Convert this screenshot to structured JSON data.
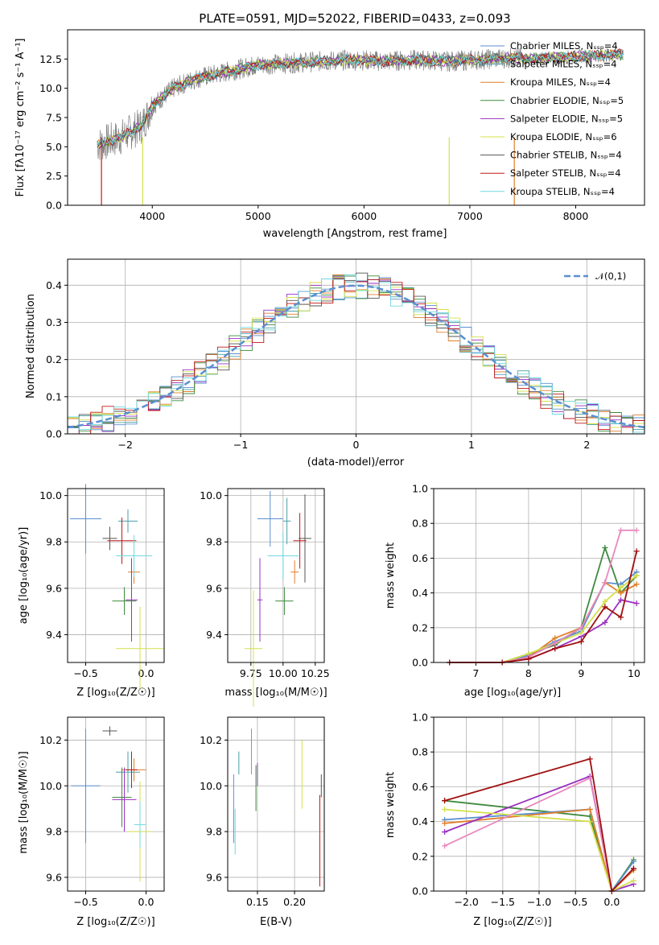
{
  "spectrum": {
    "title": "PLATE=0591, MJD=52022, FIBERID=0433, z=0.093",
    "xlabel": "wavelength [Angstrom, rest frame]",
    "ylabel": "Flux [fλ10⁻¹⁷ erg cm⁻² s⁻¹ A⁻¹]",
    "xticks": [
      "4000",
      "5000",
      "6000",
      "7000",
      "8000"
    ],
    "yticks": [
      "0.0",
      "2.5",
      "5.0",
      "7.5",
      "10.0",
      "12.5"
    ],
    "legend": [
      {
        "label": "Chabrier MILES, N_SSP=4",
        "color": "#5b8fd0"
      },
      {
        "label": "Salpeter MILES, N_SSP=4",
        "color": "#4aa0a8"
      },
      {
        "label": "Kroupa MILES, N_SSP=4",
        "color": "#e07f2a"
      },
      {
        "label": "Chabrier ELODIE, N_SSP=5",
        "color": "#3f8a3f"
      },
      {
        "label": "Salpeter ELODIE, N_SSP=5",
        "color": "#9b30c0"
      },
      {
        "label": "Kroupa ELODIE, N_SSP=6",
        "color": "#d4e04a"
      },
      {
        "label": "Chabrier STELIB, N_SSP=4",
        "color": "#555555"
      },
      {
        "label": "Salpeter STELIB, N_SSP=4",
        "color": "#c01818"
      },
      {
        "label": "Kroupa STELIB, N_SSP=4",
        "color": "#6fd8e0"
      }
    ]
  },
  "residuals": {
    "xlabel": "(data-model)/error",
    "ylabel": "Normed distribution",
    "xticks": [
      "−2",
      "−1",
      "0",
      "1",
      "2"
    ],
    "yticks": [
      "0.0",
      "0.1",
      "0.2",
      "0.3",
      "0.4"
    ],
    "legend_label": "𝒩(0,1)"
  },
  "panels": {
    "age_vs_Z": {
      "xlabel": "Z [log₁₀(Z/Z☉)]",
      "ylabel": "age  [log₁₀(age/yr)]",
      "xticks": [
        "−0.5",
        "0.0"
      ],
      "yticks": [
        "9.4",
        "9.6",
        "9.8",
        "10.0"
      ]
    },
    "age_vs_mass": {
      "xlabel": "mass [log₁₀(M/M☉)]",
      "xticks": [
        "9.75",
        "10.00",
        "10.25"
      ],
      "yticks": [
        "9.4",
        "9.6",
        "9.8",
        "10.0"
      ]
    },
    "weight_vs_age": {
      "xlabel": "age  [log₁₀(age/yr)]",
      "ylabel": "mass weight",
      "xticks": [
        "7",
        "8",
        "9",
        "10"
      ],
      "yticks": [
        "0.0",
        "0.2",
        "0.4",
        "0.6",
        "0.8",
        "1.0"
      ]
    },
    "mass_vs_Z": {
      "xlabel": "Z [log₁₀(Z/Z☉)]",
      "ylabel": "mass [log₁₀(M/M☉)]",
      "xticks": [
        "−0.5",
        "0.0"
      ],
      "yticks": [
        "9.6",
        "9.8",
        "10.0",
        "10.2"
      ]
    },
    "mass_vs_ebv": {
      "xlabel": "E(B-V)",
      "xticks": [
        "0.15",
        "0.20"
      ],
      "yticks": [
        "9.6",
        "9.8",
        "10.0",
        "10.2"
      ]
    },
    "weight_vs_Z": {
      "xlabel": "Z [log₁₀(Z/Z☉)]",
      "ylabel": "mass weight",
      "xticks": [
        "−2.0",
        "−1.5",
        "−1.0",
        "−0.5",
        "0.0"
      ],
      "yticks": [
        "0.0",
        "0.2",
        "0.4",
        "0.6",
        "0.8",
        "1.0"
      ]
    }
  },
  "chart_data": [
    {
      "type": "line",
      "title": "PLATE=0591, MJD=52022, FIBERID=0433, z=0.093",
      "xlabel": "wavelength [Angstrom, rest frame]",
      "ylabel": "Flux [fλ10⁻¹⁷ erg cm⁻² s⁻¹ A⁻¹]",
      "xlim": [
        3200,
        8650
      ],
      "ylim": [
        0,
        15
      ],
      "grid": false,
      "legend": "right",
      "x": [
        3500,
        3700,
        3900,
        4000,
        4200,
        4400,
        4600,
        4800,
        5000,
        5200,
        5400,
        5600,
        5800,
        6000,
        6200,
        6400,
        6600,
        6800,
        7000,
        7200,
        7400,
        7600,
        7800,
        8000,
        8200,
        8400
      ],
      "y": [
        5.2,
        5.8,
        6.8,
        8.5,
        10.0,
        10.8,
        11.2,
        11.6,
        12.0,
        12.1,
        12.2,
        12.3,
        12.4,
        12.4,
        12.3,
        12.4,
        12.4,
        12.3,
        12.4,
        12.5,
        12.6,
        12.5,
        12.6,
        12.7,
        12.8,
        12.9
      ]
    },
    {
      "type": "line",
      "title": "",
      "xlabel": "(data-model)/error",
      "ylabel": "Normed distribution",
      "xlim": [
        -2.5,
        2.5
      ],
      "ylim": [
        0,
        0.47
      ],
      "grid": true,
      "legend": "top-right",
      "series": [
        {
          "name": "𝒩(0,1)",
          "x": [
            -2.5,
            -2,
            -1.5,
            -1,
            -0.5,
            0,
            0.5,
            1,
            1.5,
            2,
            2.5
          ],
          "values": [
            0.0175,
            0.054,
            0.1295,
            0.242,
            0.352,
            0.399,
            0.352,
            0.242,
            0.1295,
            0.054,
            0.0175
          ]
        }
      ]
    },
    {
      "type": "scatter",
      "xlabel": "Z [log₁₀(Z/Z☉)]",
      "ylabel": "age  [log₁₀(age/yr)]",
      "xlim": [
        -0.65,
        0.15
      ],
      "ylim": [
        9.28,
        10.03
      ],
      "grid": true,
      "x": [
        -0.5,
        -0.15,
        -0.1,
        -0.18,
        -0.12,
        -0.05,
        -0.3,
        -0.2,
        -0.1
      ],
      "y": [
        9.9,
        9.89,
        9.67,
        9.545,
        9.55,
        9.34,
        9.815,
        9.805,
        9.74
      ]
    },
    {
      "type": "scatter",
      "xlabel": "mass [log₁₀(M/M☉)]",
      "xlim": [
        9.57,
        10.32
      ],
      "ylim": [
        9.28,
        10.03
      ],
      "grid": true,
      "x": [
        9.9,
        10.03,
        10.09,
        10.01,
        9.82,
        9.77,
        10.17,
        10.13,
        10.0
      ],
      "y": [
        9.9,
        9.89,
        9.67,
        9.545,
        9.55,
        9.34,
        9.815,
        9.805,
        9.74
      ]
    },
    {
      "type": "line",
      "xlabel": "age  [log₁₀(age/yr)]",
      "ylabel": "mass weight",
      "xlim": [
        6.2,
        10.2
      ],
      "ylim": [
        0,
        1
      ],
      "grid": true,
      "x": [
        6.5,
        7.5,
        8.0,
        8.5,
        9.0,
        9.45,
        9.75,
        10.05
      ],
      "series": [
        {
          "values": [
            0.0,
            0.0,
            0.05,
            0.1,
            0.2,
            0.66,
            0.4,
            0.5
          ]
        },
        {
          "values": [
            0.0,
            0.0,
            0.04,
            0.12,
            0.18,
            0.46,
            0.45,
            0.52
          ]
        },
        {
          "values": [
            0.0,
            0.0,
            0.03,
            0.14,
            0.2,
            0.46,
            0.4,
            0.45
          ]
        },
        {
          "values": [
            0.0,
            0.0,
            0.02,
            0.08,
            0.15,
            0.23,
            0.36,
            0.34
          ]
        },
        {
          "values": [
            0.0,
            0.0,
            0.05,
            0.11,
            0.17,
            0.35,
            0.43,
            0.5
          ]
        },
        {
          "values": [
            0.0,
            0.0,
            0.03,
            0.11,
            0.2,
            0.46,
            0.76,
            0.76
          ]
        },
        {
          "values": [
            0.0,
            0.0,
            0.02,
            0.08,
            0.12,
            0.32,
            0.26,
            0.64
          ]
        }
      ]
    },
    {
      "type": "scatter",
      "xlabel": "Z [log₁₀(Z/Z☉)]",
      "ylabel": "mass [log₁₀(M/M☉)]",
      "xlim": [
        -0.65,
        0.15
      ],
      "ylim": [
        9.54,
        10.3
      ],
      "grid": true,
      "x": [
        -0.5,
        -0.15,
        -0.1,
        -0.2,
        -0.18,
        -0.05,
        -0.3,
        -0.12,
        -0.05
      ],
      "y": [
        10.0,
        10.06,
        10.07,
        9.95,
        9.94,
        9.8,
        10.24,
        10.07,
        9.83
      ]
    },
    {
      "type": "scatter",
      "xlabel": "E(B-V)",
      "xlim": [
        0.11,
        0.24
      ],
      "ylim": [
        9.54,
        10.3
      ],
      "grid": true,
      "x": [
        0.118,
        0.125,
        0.142,
        0.148,
        0.15,
        0.21,
        0.236,
        0.234,
        0.12
      ],
      "y": [
        9.9,
        10.1,
        10.15,
        9.99,
        10.05,
        10.05,
        10.0,
        9.76,
        9.8
      ]
    },
    {
      "type": "line",
      "xlabel": "Z [log₁₀(Z/Z☉)]",
      "ylabel": "mass weight",
      "xlim": [
        -2.45,
        0.45
      ],
      "ylim": [
        0,
        1
      ],
      "grid": true,
      "x": [
        -2.3,
        -0.3,
        0.0,
        0.3
      ],
      "series": [
        {
          "values": [
            0.52,
            0.43,
            0.0,
            0.18
          ]
        },
        {
          "values": [
            0.41,
            0.47,
            0.0,
            0.17
          ]
        },
        {
          "values": [
            0.39,
            0.47,
            0.0,
            0.12
          ]
        },
        {
          "values": [
            0.34,
            0.66,
            0.0,
            0.04
          ]
        },
        {
          "values": [
            0.47,
            0.4,
            0.0,
            0.06
          ]
        },
        {
          "values": [
            0.26,
            0.65,
            0.0,
            0.13
          ]
        },
        {
          "values": [
            0.52,
            0.76,
            0.0,
            0.13
          ]
        }
      ]
    }
  ]
}
